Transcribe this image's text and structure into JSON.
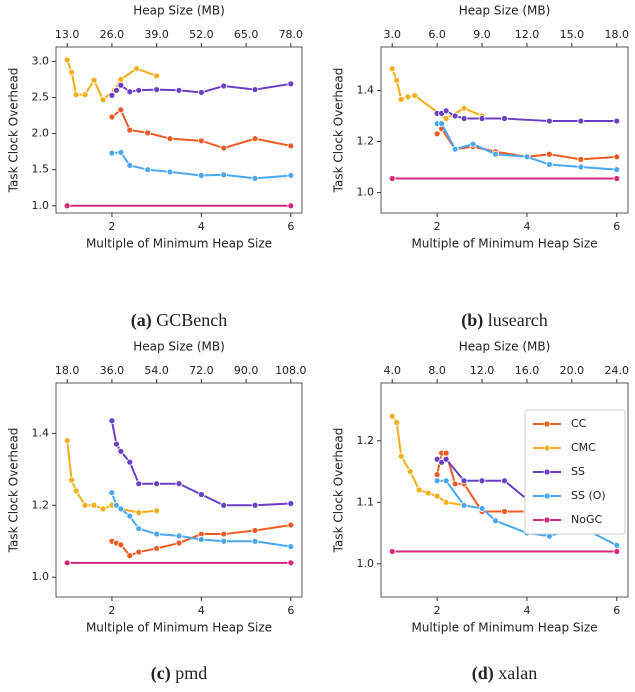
{
  "chart_data": [
    {
      "type": "line",
      "caption_label": "(a)",
      "caption": "GCBench",
      "xlabel": "Multiple of Minimum Heap Size",
      "ylabel": "Task Clock Overhead",
      "x2label": "Heap Size (MB)",
      "xlim": [
        0.75,
        6.25
      ],
      "xticks": [
        2,
        4,
        6
      ],
      "x2lim": [
        9.75,
        81.25
      ],
      "x2ticks": [
        {
          "value": 13,
          "label": "13.0"
        },
        {
          "value": 26,
          "label": "26.0"
        },
        {
          "value": 39,
          "label": "39.0"
        },
        {
          "value": 52,
          "label": "52.0"
        },
        {
          "value": 65,
          "label": "65.0"
        },
        {
          "value": 78,
          "label": "78.0"
        }
      ],
      "ylim": [
        0.9,
        3.2
      ],
      "yticks": [
        {
          "value": 1.0,
          "label": "1.0"
        },
        {
          "value": 1.5,
          "label": "1.5"
        },
        {
          "value": 2.0,
          "label": "2.0"
        },
        {
          "value": 2.5,
          "label": "2.5"
        },
        {
          "value": 3.0,
          "label": "3.0"
        }
      ],
      "series": [
        {
          "color": "#f05a23",
          "x": [
            2,
            2.2,
            2.4,
            2.8,
            3.3,
            4,
            4.5,
            5.2,
            6
          ],
          "values": [
            2.23,
            2.33,
            2.05,
            2.01,
            1.93,
            1.9,
            1.8,
            1.93,
            1.83
          ]
        },
        {
          "color": "#f6ae1a",
          "x": [
            1,
            1.1,
            1.2,
            1.4,
            1.6,
            1.8,
            2.05,
            2.2,
            2.55,
            3
          ],
          "values": [
            3.02,
            2.85,
            2.54,
            2.54,
            2.74,
            2.47,
            2.6,
            2.75,
            2.9,
            2.8
          ]
        },
        {
          "color": "#6a3fc8",
          "x": [
            2,
            2.1,
            2.2,
            2.4,
            2.6,
            3,
            3.5,
            4,
            4.5,
            5.2,
            6
          ],
          "values": [
            2.53,
            2.6,
            2.67,
            2.58,
            2.6,
            2.61,
            2.6,
            2.57,
            2.66,
            2.61,
            2.69
          ]
        },
        {
          "color": "#4aa8f0",
          "x": [
            2,
            2.2,
            2.4,
            2.8,
            3.3,
            4,
            4.5,
            5.2,
            6
          ],
          "values": [
            1.73,
            1.74,
            1.56,
            1.5,
            1.47,
            1.42,
            1.43,
            1.38,
            1.42
          ]
        },
        {
          "color": "#d6287a",
          "x": [
            1,
            6
          ],
          "values": [
            1.0,
            1.0
          ]
        }
      ]
    },
    {
      "type": "line",
      "caption_label": "(b)",
      "caption": "lusearch",
      "xlabel": "Multiple of Minimum Heap Size",
      "ylabel": "Task Clock Overhead",
      "x2label": "Heap Size (MB)",
      "xlim": [
        0.75,
        6.25
      ],
      "xticks": [
        2,
        4,
        6
      ],
      "x2lim": [
        2.25,
        18.75
      ],
      "x2ticks": [
        {
          "value": 3,
          "label": "3.0"
        },
        {
          "value": 6,
          "label": "6.0"
        },
        {
          "value": 9,
          "label": "9.0"
        },
        {
          "value": 12,
          "label": "12.0"
        },
        {
          "value": 15,
          "label": "15.0"
        },
        {
          "value": 18,
          "label": "18.0"
        }
      ],
      "ylim": [
        0.92,
        1.57
      ],
      "yticks": [
        {
          "value": 1.0,
          "label": "1.0"
        },
        {
          "value": 1.2,
          "label": "1.2"
        },
        {
          "value": 1.4,
          "label": "1.4"
        }
      ],
      "series": [
        {
          "color": "#f05a23",
          "x": [
            2,
            2.1,
            2.4,
            2.8,
            3.3,
            4,
            4.5,
            5.2,
            6
          ],
          "values": [
            1.23,
            1.25,
            1.17,
            1.18,
            1.16,
            1.14,
            1.15,
            1.13,
            1.14
          ]
        },
        {
          "color": "#f6ae1a",
          "x": [
            1,
            1.1,
            1.2,
            1.35,
            1.5,
            2.2,
            2.6,
            3
          ],
          "values": [
            1.485,
            1.44,
            1.365,
            1.375,
            1.38,
            1.29,
            1.33,
            1.3
          ]
        },
        {
          "color": "#6a3fc8",
          "x": [
            2,
            2.1,
            2.2,
            2.4,
            2.6,
            3,
            3.5,
            4.5,
            5.2,
            6
          ],
          "values": [
            1.31,
            1.31,
            1.32,
            1.3,
            1.29,
            1.29,
            1.29,
            1.28,
            1.28,
            1.28
          ]
        },
        {
          "color": "#4aa8f0",
          "x": [
            2,
            2.1,
            2.4,
            2.8,
            3.3,
            4,
            4.5,
            5.2,
            6
          ],
          "values": [
            1.27,
            1.27,
            1.17,
            1.19,
            1.15,
            1.14,
            1.11,
            1.1,
            1.09
          ]
        },
        {
          "color": "#d6287a",
          "x": [
            1,
            6
          ],
          "values": [
            1.055,
            1.055
          ]
        }
      ]
    },
    {
      "type": "line",
      "caption_label": "(c)",
      "caption": "pmd",
      "xlabel": "Multiple of Minimum Heap Size",
      "ylabel": "Task Clock Overhead",
      "x2label": "Heap Size (MB)",
      "xlim": [
        0.75,
        6.25
      ],
      "xticks": [
        2,
        4,
        6
      ],
      "x2lim": [
        13.5,
        112.5
      ],
      "x2ticks": [
        {
          "value": 18,
          "label": "18.0"
        },
        {
          "value": 36,
          "label": "36.0"
        },
        {
          "value": 54,
          "label": "54.0"
        },
        {
          "value": 72,
          "label": "72.0"
        },
        {
          "value": 90,
          "label": "90.0"
        },
        {
          "value": 108,
          "label": "108.0"
        }
      ],
      "ylim": [
        0.945,
        1.54
      ],
      "yticks": [
        {
          "value": 1.0,
          "label": "1.0"
        },
        {
          "value": 1.2,
          "label": "1.2"
        },
        {
          "value": 1.4,
          "label": "1.4"
        }
      ],
      "series": [
        {
          "color": "#f05a23",
          "x": [
            2,
            2.1,
            2.2,
            2.4,
            2.6,
            3,
            3.5,
            4,
            4.5,
            5.2,
            6
          ],
          "values": [
            1.1,
            1.095,
            1.09,
            1.06,
            1.07,
            1.08,
            1.095,
            1.12,
            1.12,
            1.13,
            1.145
          ]
        },
        {
          "color": "#f6ae1a",
          "x": [
            1,
            1.1,
            1.2,
            1.4,
            1.6,
            1.8,
            2,
            2.2,
            2.6,
            3
          ],
          "values": [
            1.38,
            1.27,
            1.24,
            1.2,
            1.2,
            1.19,
            1.2,
            1.19,
            1.18,
            1.185
          ]
        },
        {
          "color": "#6a3fc8",
          "x": [
            2,
            2.1,
            2.2,
            2.4,
            2.6,
            3,
            3.5,
            4,
            4.5,
            5.2,
            6
          ],
          "values": [
            1.435,
            1.37,
            1.35,
            1.32,
            1.26,
            1.26,
            1.26,
            1.23,
            1.2,
            1.2,
            1.205
          ]
        },
        {
          "color": "#4aa8f0",
          "x": [
            2,
            2.1,
            2.2,
            2.4,
            2.6,
            3,
            3.5,
            4,
            4.5,
            5.2,
            6
          ],
          "values": [
            1.235,
            1.2,
            1.19,
            1.17,
            1.135,
            1.12,
            1.115,
            1.105,
            1.1,
            1.1,
            1.085
          ]
        },
        {
          "color": "#d6287a",
          "x": [
            1,
            6
          ],
          "values": [
            1.04,
            1.04
          ]
        }
      ]
    },
    {
      "type": "line",
      "caption_label": "(d)",
      "caption": "xalan",
      "xlabel": "Multiple of Minimum Heap Size",
      "ylabel": "Task Clock Overhead",
      "x2label": "Heap Size (MB)",
      "xlim": [
        0.75,
        6.25
      ],
      "xticks": [
        2,
        4,
        6
      ],
      "x2lim": [
        3,
        25
      ],
      "x2ticks": [
        {
          "value": 4,
          "label": "4.0"
        },
        {
          "value": 8,
          "label": "8.0"
        },
        {
          "value": 12,
          "label": "12.0"
        },
        {
          "value": 16,
          "label": "16.0"
        },
        {
          "value": 20,
          "label": "20.0"
        },
        {
          "value": 24,
          "label": "24.0"
        }
      ],
      "ylim": [
        0.946,
        1.294
      ],
      "yticks": [
        {
          "value": 1.0,
          "label": "1.0"
        },
        {
          "value": 1.1,
          "label": "1.1"
        },
        {
          "value": 1.2,
          "label": "1.2"
        }
      ],
      "legend": "upper right",
      "series": [
        {
          "name": "CC",
          "color": "#f05a23",
          "x": [
            2,
            2.1,
            2.2,
            2.4,
            2.6,
            3,
            3.5,
            4,
            4.5,
            5.2,
            6
          ],
          "values": [
            1.145,
            1.18,
            1.18,
            1.13,
            1.13,
            1.085,
            1.085,
            1.085,
            1.09,
            1.09,
            1.09
          ]
        },
        {
          "name": "CMC",
          "color": "#f6ae1a",
          "x": [
            1,
            1.1,
            1.2,
            1.4,
            1.6,
            1.8,
            2,
            2.2,
            2.6,
            3
          ],
          "values": [
            1.24,
            1.23,
            1.175,
            1.15,
            1.12,
            1.115,
            1.11,
            1.1,
            1.095,
            1.09
          ]
        },
        {
          "name": "SS",
          "color": "#6a3fc8",
          "x": [
            2,
            2.1,
            2.2,
            2.6,
            3,
            3.5,
            4,
            4.5,
            5.2,
            6
          ],
          "values": [
            1.17,
            1.165,
            1.17,
            1.135,
            1.135,
            1.135,
            1.105,
            1.1,
            1.1,
            1.1
          ]
        },
        {
          "name": "SS (O)",
          "color": "#4aa8f0",
          "x": [
            2,
            2.2,
            2.6,
            3,
            3.3,
            4,
            4.5,
            5.2,
            6
          ],
          "values": [
            1.135,
            1.135,
            1.095,
            1.09,
            1.07,
            1.05,
            1.045,
            1.06,
            1.03
          ]
        },
        {
          "name": "NoGC",
          "color": "#d6287a",
          "x": [
            1,
            6
          ],
          "values": [
            1.02,
            1.02
          ]
        }
      ]
    }
  ]
}
